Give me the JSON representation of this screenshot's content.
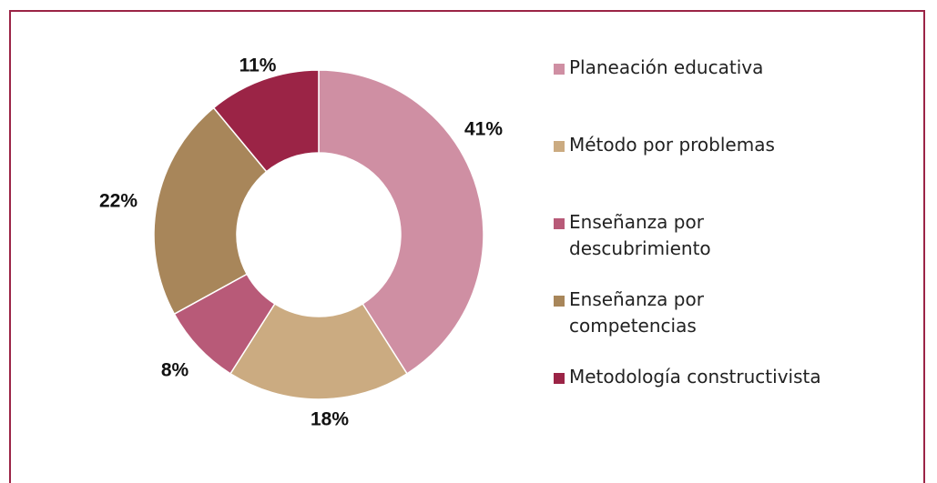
{
  "chart_data": {
    "type": "donut",
    "categories": [
      "Planeación educativa",
      "Método por problemas",
      "Enseñanza por descubrimiento",
      "Enseñanza por competencias",
      "Metodología constructivista"
    ],
    "values": [
      41,
      18,
      8,
      22,
      11
    ],
    "value_labels": [
      "41%",
      "18%",
      "8%",
      "22%",
      "11%"
    ],
    "colors": [
      "#cf8fa3",
      "#cbab81",
      "#b85a78",
      "#a8865a",
      "#9b2446"
    ],
    "legend": "right"
  }
}
